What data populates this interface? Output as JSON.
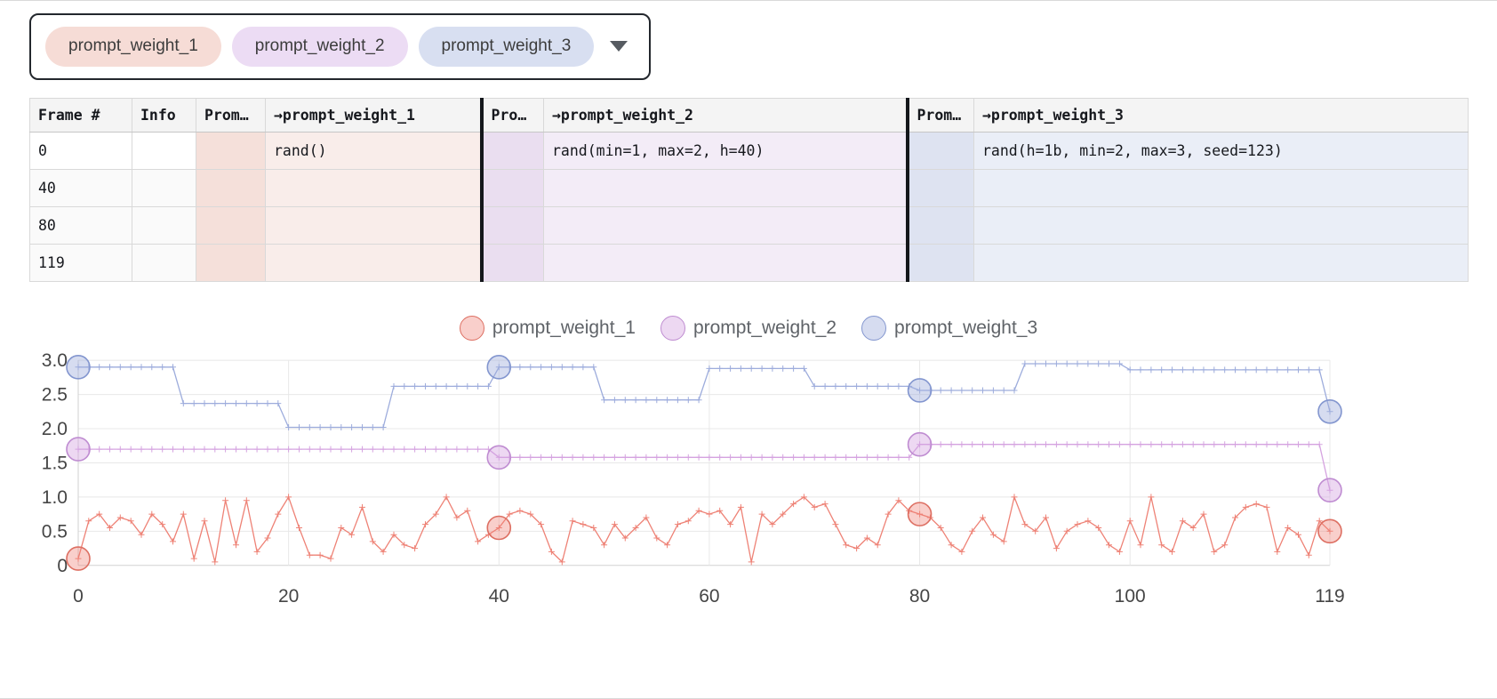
{
  "tag_bar": {
    "tags": [
      {
        "label": "prompt_weight_1",
        "bg": "#f6dcd6",
        "color": "#3c3c3c"
      },
      {
        "label": "prompt_weight_2",
        "bg": "#ecdcf4",
        "color": "#3c3c3c"
      },
      {
        "label": "prompt_weight_3",
        "bg": "#d8dff1",
        "color": "#3c3c3c"
      }
    ],
    "dropdown_icon": "caret-down"
  },
  "table": {
    "columns": [
      {
        "key": "frame",
        "label": "Frame #"
      },
      {
        "key": "info",
        "label": "Info"
      },
      {
        "key": "prom1",
        "label": "Prom…"
      },
      {
        "key": "pw1",
        "label": "→prompt_weight_1"
      },
      {
        "key": "prom2",
        "label": "Prom…"
      },
      {
        "key": "pw2",
        "label": "→prompt_weight_2"
      },
      {
        "key": "prom3",
        "label": "Prom…"
      },
      {
        "key": "pw3",
        "label": "→prompt_weight_3"
      }
    ],
    "rows": [
      {
        "frame": "0",
        "info": "",
        "prom1": "",
        "pw1": "rand()",
        "prom2": "",
        "pw2": "rand(min=1, max=2, h=40)",
        "prom3": "",
        "pw3": "rand(h=1b, min=2, max=3, seed=123)"
      },
      {
        "frame": "40",
        "info": "",
        "prom1": "",
        "pw1": "",
        "prom2": "",
        "pw2": "",
        "prom3": "",
        "pw3": ""
      },
      {
        "frame": "80",
        "info": "",
        "prom1": "",
        "pw1": "",
        "prom2": "",
        "pw2": "",
        "prom3": "",
        "pw3": ""
      },
      {
        "frame": "119",
        "info": "",
        "prom1": "",
        "pw1": "",
        "prom2": "",
        "pw2": "",
        "prom3": "",
        "pw3": ""
      }
    ]
  },
  "chart_data": {
    "type": "line",
    "title": "",
    "xlabel": "",
    "ylabel": "",
    "xlim": [
      0,
      119
    ],
    "ylim": [
      -0.12,
      3.08
    ],
    "x_ticks": [
      0,
      20,
      40,
      60,
      80,
      100,
      119
    ],
    "y_ticks": [
      0,
      0.5,
      1.0,
      1.5,
      2.0,
      2.5,
      3.0
    ],
    "grid": true,
    "legend_position": "top-center",
    "n_frames": 120,
    "series": [
      {
        "name": "prompt_weight_1",
        "color": "#ee8276",
        "keyframe_stroke": "#dd6f62",
        "fill": "rgba(238,130,118,0.38)",
        "marker": "plus",
        "values": [
          0.1,
          0.65,
          0.75,
          0.55,
          0.7,
          0.65,
          0.45,
          0.75,
          0.6,
          0.35,
          0.75,
          0.1,
          0.65,
          0.05,
          0.95,
          0.3,
          0.95,
          0.2,
          0.4,
          0.75,
          1.0,
          0.55,
          0.15,
          0.15,
          0.1,
          0.55,
          0.45,
          0.85,
          0.35,
          0.2,
          0.45,
          0.3,
          0.25,
          0.6,
          0.75,
          1.0,
          0.7,
          0.8,
          0.35,
          0.45,
          0.55,
          0.75,
          0.8,
          0.75,
          0.6,
          0.2,
          0.05,
          0.65,
          0.6,
          0.55,
          0.3,
          0.6,
          0.4,
          0.55,
          0.7,
          0.4,
          0.3,
          0.6,
          0.65,
          0.8,
          0.75,
          0.8,
          0.6,
          0.85,
          0.05,
          0.75,
          0.6,
          0.75,
          0.9,
          1.0,
          0.85,
          0.9,
          0.6,
          0.3,
          0.25,
          0.4,
          0.3,
          0.75,
          0.95,
          0.8,
          0.75,
          0.7,
          0.55,
          0.3,
          0.2,
          0.5,
          0.7,
          0.45,
          0.35,
          1.0,
          0.6,
          0.5,
          0.7,
          0.25,
          0.5,
          0.6,
          0.65,
          0.55,
          0.3,
          0.2,
          0.65,
          0.3,
          1.0,
          0.3,
          0.2,
          0.65,
          0.55,
          0.75,
          0.2,
          0.3,
          0.7,
          0.85,
          0.9,
          0.85,
          0.2,
          0.55,
          0.45,
          0.15,
          0.65,
          0.5
        ],
        "keyframes": [
          [
            0,
            0.1
          ],
          [
            40,
            0.55
          ],
          [
            80,
            0.75
          ],
          [
            119,
            0.5
          ]
        ]
      },
      {
        "name": "prompt_weight_2",
        "color": "#d5a3e0",
        "keyframe_stroke": "#bf8cd1",
        "fill": "rgba(213,163,224,0.42)",
        "marker": "plus",
        "steps": [
          [
            0,
            39,
            1.7
          ],
          [
            40,
            79,
            1.58
          ],
          [
            80,
            118,
            1.77
          ],
          [
            119,
            119,
            1.1
          ]
        ],
        "keyframes": [
          [
            0,
            1.7
          ],
          [
            40,
            1.58
          ],
          [
            80,
            1.77
          ],
          [
            119,
            1.1
          ]
        ]
      },
      {
        "name": "prompt_weight_3",
        "color": "#9dacdc",
        "keyframe_stroke": "#8396cf",
        "fill": "rgba(157,172,220,0.42)",
        "marker": "plus",
        "steps": [
          [
            0,
            9,
            2.9
          ],
          [
            10,
            19,
            2.37
          ],
          [
            20,
            29,
            2.02
          ],
          [
            30,
            39,
            2.62
          ],
          [
            40,
            49,
            2.9
          ],
          [
            50,
            59,
            2.42
          ],
          [
            60,
            69,
            2.88
          ],
          [
            70,
            79,
            2.62
          ],
          [
            80,
            89,
            2.56
          ],
          [
            90,
            99,
            2.95
          ],
          [
            100,
            118,
            2.86
          ],
          [
            119,
            119,
            2.25
          ]
        ],
        "keyframes": [
          [
            0,
            2.9
          ],
          [
            40,
            2.9
          ],
          [
            80,
            2.56
          ],
          [
            119,
            2.25
          ]
        ]
      }
    ]
  }
}
